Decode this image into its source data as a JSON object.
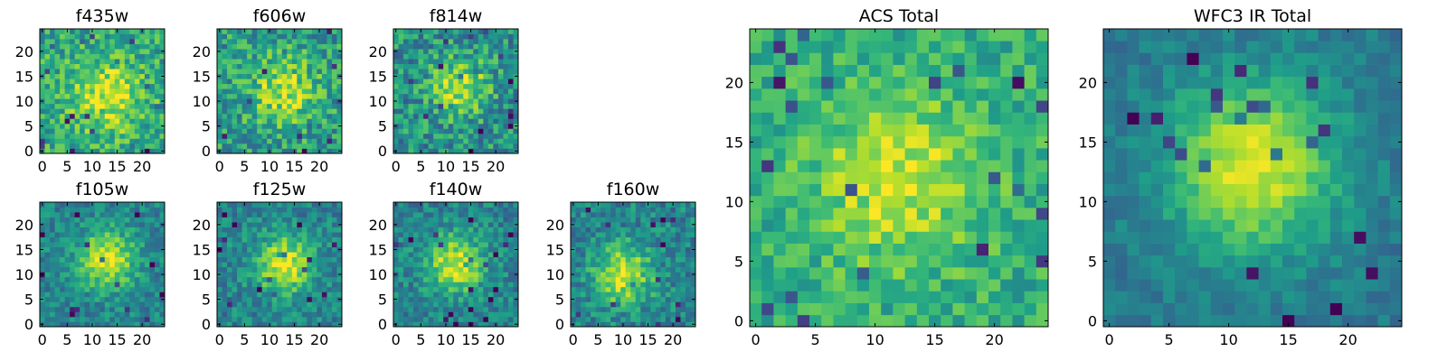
{
  "chart_data": [
    {
      "type": "heatmap",
      "title": "f435w",
      "colormap": "viridis",
      "grid": [
        25,
        25
      ],
      "peak": [
        13,
        11
      ],
      "sigma": 5,
      "signal": 0.35,
      "noise": 0.42,
      "base": 0.6,
      "seed": 101,
      "xlim": [
        0,
        24
      ],
      "ylim": [
        0,
        24
      ],
      "xticks": [
        0,
        5,
        10,
        15,
        20
      ],
      "yticks": [
        0,
        5,
        10,
        15,
        20
      ],
      "xtick_labels": [
        "0",
        "5",
        "10",
        "15",
        "20"
      ],
      "ytick_labels": [
        "0",
        "5",
        "10",
        "15",
        "20"
      ]
    },
    {
      "type": "heatmap",
      "title": "f606w",
      "colormap": "viridis",
      "grid": [
        25,
        25
      ],
      "peak": [
        13,
        12
      ],
      "sigma": 4.5,
      "signal": 0.35,
      "noise": 0.45,
      "base": 0.55,
      "seed": 202,
      "xlim": [
        0,
        24
      ],
      "ylim": [
        0,
        24
      ],
      "xticks": [
        0,
        5,
        10,
        15,
        20
      ],
      "yticks": [
        0,
        5,
        10,
        15,
        20
      ],
      "xtick_labels": [
        "0",
        "5",
        "10",
        "15",
        "20"
      ],
      "ytick_labels": [
        "0",
        "5",
        "10",
        "15",
        "20"
      ]
    },
    {
      "type": "heatmap",
      "title": "f814w",
      "colormap": "viridis",
      "grid": [
        25,
        25
      ],
      "peak": [
        13,
        13
      ],
      "sigma": 4,
      "signal": 0.4,
      "noise": 0.45,
      "base": 0.5,
      "seed": 303,
      "xlim": [
        0,
        24
      ],
      "ylim": [
        0,
        24
      ],
      "xticks": [
        0,
        5,
        10,
        15,
        20
      ],
      "yticks": [
        0,
        5,
        10,
        15,
        20
      ],
      "xtick_labels": [
        "0",
        "5",
        "10",
        "15",
        "20"
      ],
      "ytick_labels": [
        "0",
        "5",
        "10",
        "15",
        "20"
      ]
    },
    {
      "type": "heatmap",
      "title": "f105w",
      "colormap": "viridis",
      "grid": [
        25,
        25
      ],
      "peak": [
        13,
        13
      ],
      "sigma": 4,
      "signal": 0.5,
      "noise": 0.3,
      "base": 0.45,
      "seed": 404,
      "xlim": [
        0,
        24
      ],
      "ylim": [
        0,
        24
      ],
      "xticks": [
        0,
        5,
        10,
        15,
        20
      ],
      "yticks": [
        0,
        5,
        10,
        15,
        20
      ],
      "xtick_labels": [
        "0",
        "5",
        "10",
        "15",
        "20"
      ],
      "ytick_labels": [
        "0",
        "5",
        "10",
        "15",
        "20"
      ]
    },
    {
      "type": "heatmap",
      "title": "f125w",
      "colormap": "viridis",
      "grid": [
        25,
        25
      ],
      "peak": [
        13,
        12
      ],
      "sigma": 4,
      "signal": 0.5,
      "noise": 0.32,
      "base": 0.45,
      "seed": 505,
      "xlim": [
        0,
        24
      ],
      "ylim": [
        0,
        24
      ],
      "xticks": [
        0,
        5,
        10,
        15,
        20
      ],
      "yticks": [
        0,
        5,
        10,
        15,
        20
      ],
      "xtick_labels": [
        "0",
        "5",
        "10",
        "15",
        "20"
      ],
      "ytick_labels": [
        "0",
        "5",
        "10",
        "15",
        "20"
      ]
    },
    {
      "type": "heatmap",
      "title": "f140w",
      "colormap": "viridis",
      "grid": [
        25,
        25
      ],
      "peak": [
        12,
        12
      ],
      "sigma": 4,
      "signal": 0.5,
      "noise": 0.32,
      "base": 0.45,
      "seed": 606,
      "xlim": [
        0,
        24
      ],
      "ylim": [
        0,
        24
      ],
      "xticks": [
        0,
        5,
        10,
        15,
        20
      ],
      "yticks": [
        0,
        5,
        10,
        15,
        20
      ],
      "xtick_labels": [
        "0",
        "5",
        "10",
        "15",
        "20"
      ],
      "ytick_labels": [
        "0",
        "5",
        "10",
        "15",
        "20"
      ]
    },
    {
      "type": "heatmap",
      "title": "f160w",
      "colormap": "viridis",
      "grid": [
        25,
        25
      ],
      "peak": [
        10,
        10
      ],
      "sigma": 4,
      "signal": 0.5,
      "noise": 0.35,
      "base": 0.45,
      "seed": 707,
      "xlim": [
        0,
        24
      ],
      "ylim": [
        0,
        24
      ],
      "xticks": [
        0,
        5,
        10,
        15,
        20
      ],
      "yticks": [
        0,
        5,
        10,
        15,
        20
      ],
      "xtick_labels": [
        "0",
        "5",
        "10",
        "15",
        "20"
      ],
      "ytick_labels": [
        "0",
        "5",
        "10",
        "15",
        "20"
      ]
    },
    {
      "type": "heatmap",
      "title": "ACS Total",
      "colormap": "viridis",
      "grid": [
        25,
        25
      ],
      "peak": [
        12,
        12
      ],
      "sigma": 5,
      "signal": 0.3,
      "noise": 0.3,
      "base": 0.62,
      "seed": 808,
      "xlim": [
        0,
        24
      ],
      "ylim": [
        0,
        24
      ],
      "xticks": [
        0,
        5,
        10,
        15,
        20
      ],
      "yticks": [
        0,
        5,
        10,
        15,
        20
      ],
      "xtick_labels": [
        "0",
        "5",
        "10",
        "15",
        "20"
      ],
      "ytick_labels": [
        "0",
        "5",
        "10",
        "15",
        "20"
      ]
    },
    {
      "type": "heatmap",
      "title": "WFC3 IR Total",
      "colormap": "viridis",
      "grid": [
        25,
        25
      ],
      "peak": [
        12,
        13
      ],
      "sigma": 5,
      "signal": 0.55,
      "noise": 0.18,
      "base": 0.4,
      "seed": 909,
      "xlim": [
        0,
        24
      ],
      "ylim": [
        0,
        24
      ],
      "xticks": [
        0,
        5,
        10,
        15,
        20
      ],
      "yticks": [
        0,
        5,
        10,
        15,
        20
      ],
      "xtick_labels": [
        "0",
        "5",
        "10",
        "15",
        "20"
      ],
      "ytick_labels": [
        "0",
        "5",
        "10",
        "15",
        "20"
      ]
    }
  ]
}
